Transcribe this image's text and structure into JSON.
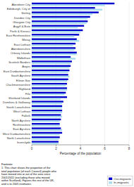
{
  "chart_data": {
    "type": "bar",
    "orientation": "horizontal",
    "categories": [
      "Aberdeen City",
      "Edinburgh, City of",
      "Stirling",
      "Dundee City",
      "Glasgow City",
      "Argyll & Bute",
      "Perth & Kinross",
      "East Renfrewshire",
      "Moray",
      "East Lothian",
      "Aberdeenshire",
      "Orkney Islands",
      "Midlothian",
      "Scottish Borders",
      "Angus",
      "East Dunbartonshire",
      "South Ayrshire",
      "Eilean Siar",
      "Clackmannanshire",
      "Highland",
      "Fife",
      "Shetland Islands",
      "Dumfries & Galloway",
      "South Lanarkshire",
      "West Lothian",
      "Falkirk",
      "North Ayrshire",
      "Renfrewshire",
      "East Ayrshire",
      "West Dunbartonshire",
      "North Lanarkshire",
      "Inverclyde"
    ],
    "series": [
      {
        "name": "Out-migrants",
        "color": "#0000CC",
        "values": [
          6.8,
          5.2,
          5.5,
          4.8,
          4.6,
          4.3,
          4.2,
          3.9,
          3.7,
          3.6,
          3.6,
          3.7,
          3.2,
          3.3,
          3.2,
          3.1,
          3.0,
          3.0,
          2.9,
          2.9,
          2.8,
          2.9,
          2.6,
          2.5,
          2.5,
          2.4,
          2.4,
          2.3,
          2.4,
          2.5,
          2.3,
          2.2
        ]
      },
      {
        "name": "In-migrants",
        "color": "#AADDEE",
        "values": [
          6.0,
          5.8,
          5.0,
          4.6,
          4.5,
          3.8,
          4.0,
          3.5,
          3.9,
          3.4,
          3.5,
          3.7,
          3.6,
          3.2,
          3.1,
          3.0,
          3.1,
          2.9,
          2.8,
          2.9,
          2.7,
          2.4,
          2.5,
          2.5,
          2.5,
          2.5,
          2.3,
          2.3,
          2.5,
          2.3,
          2.2,
          2.2
        ]
      }
    ],
    "xlabel": "Percentage of the population",
    "xlim": [
      0,
      8
    ],
    "xticks": [
      0,
      2,
      4,
      6,
      8
    ],
    "grid": true,
    "legend": "lower right",
    "footnote": "Footnote:\n1. This chart shows the proportion of the\ntotal population (of each Council) people who\nhave moved into or out of the area since\n2001/2011 (excluding those who moved\nwithin Scotland). Figures the rest of the UK,\nand is to 2005 estimates"
  }
}
